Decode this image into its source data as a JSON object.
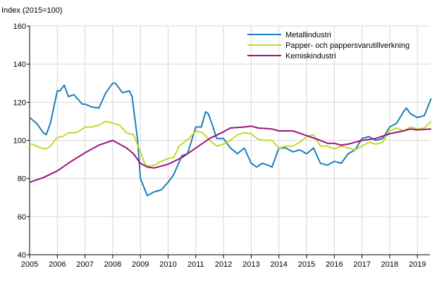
{
  "chart_data": {
    "type": "line",
    "ylabel": "Index (2015=100)",
    "xlabel": "",
    "ylim": [
      40,
      160
    ],
    "xlim": [
      2005,
      2019.6
    ],
    "yticks": [
      40,
      60,
      80,
      100,
      120,
      140,
      160
    ],
    "xticks": [
      "2005",
      "2006",
      "2007",
      "2008",
      "2009",
      "2010",
      "2011",
      "2012",
      "2013",
      "2014",
      "2015",
      "2016",
      "2017",
      "2018",
      "2019"
    ],
    "grid": true,
    "legend": "top-right",
    "series": [
      {
        "name": "Metallindustri",
        "color": "#1a7fba",
        "points": [
          [
            2005.0,
            112
          ],
          [
            2005.25,
            109
          ],
          [
            2005.5,
            104
          ],
          [
            2005.6,
            103
          ],
          [
            2005.75,
            109
          ],
          [
            2006.0,
            126
          ],
          [
            2006.1,
            126
          ],
          [
            2006.25,
            129
          ],
          [
            2006.4,
            123
          ],
          [
            2006.6,
            124
          ],
          [
            2006.9,
            119
          ],
          [
            2007.0,
            119
          ],
          [
            2007.25,
            117.5
          ],
          [
            2007.5,
            117
          ],
          [
            2007.75,
            125
          ],
          [
            2008.0,
            130
          ],
          [
            2008.1,
            130
          ],
          [
            2008.35,
            125
          ],
          [
            2008.6,
            126
          ],
          [
            2008.7,
            123
          ],
          [
            2008.9,
            100
          ],
          [
            2009.0,
            80
          ],
          [
            2009.25,
            71
          ],
          [
            2009.5,
            73
          ],
          [
            2009.75,
            74
          ],
          [
            2010.0,
            78
          ],
          [
            2010.2,
            82
          ],
          [
            2010.5,
            92
          ],
          [
            2010.7,
            93
          ],
          [
            2011.0,
            107
          ],
          [
            2011.2,
            107
          ],
          [
            2011.35,
            115
          ],
          [
            2011.45,
            114
          ],
          [
            2011.6,
            108
          ],
          [
            2011.75,
            101
          ],
          [
            2012.0,
            101
          ],
          [
            2012.25,
            96
          ],
          [
            2012.5,
            93
          ],
          [
            2012.75,
            96
          ],
          [
            2013.0,
            88
          ],
          [
            2013.2,
            86
          ],
          [
            2013.4,
            88
          ],
          [
            2013.6,
            87
          ],
          [
            2013.75,
            86
          ],
          [
            2014.0,
            96
          ],
          [
            2014.25,
            96
          ],
          [
            2014.5,
            94
          ],
          [
            2014.75,
            95
          ],
          [
            2015.0,
            93
          ],
          [
            2015.25,
            96
          ],
          [
            2015.5,
            88
          ],
          [
            2015.75,
            87
          ],
          [
            2016.0,
            89
          ],
          [
            2016.25,
            88
          ],
          [
            2016.5,
            93
          ],
          [
            2016.75,
            95
          ],
          [
            2017.0,
            101
          ],
          [
            2017.25,
            102
          ],
          [
            2017.5,
            100
          ],
          [
            2017.75,
            101
          ],
          [
            2018.0,
            107
          ],
          [
            2018.25,
            109
          ],
          [
            2018.5,
            115
          ],
          [
            2018.6,
            117
          ],
          [
            2018.75,
            114
          ],
          [
            2019.0,
            112
          ],
          [
            2019.25,
            113
          ],
          [
            2019.5,
            122
          ]
        ]
      },
      {
        "name": "Papper- och pappersvarutillverkning",
        "color": "#c3d92b",
        "points": [
          [
            2005.0,
            98
          ],
          [
            2005.1,
            98
          ],
          [
            2005.4,
            96
          ],
          [
            2005.6,
            95.5
          ],
          [
            2005.75,
            97
          ],
          [
            2006.0,
            101.5
          ],
          [
            2006.2,
            102
          ],
          [
            2006.4,
            104
          ],
          [
            2006.6,
            104
          ],
          [
            2006.75,
            104.5
          ],
          [
            2007.0,
            107
          ],
          [
            2007.25,
            107
          ],
          [
            2007.5,
            108
          ],
          [
            2007.75,
            110
          ],
          [
            2008.0,
            109
          ],
          [
            2008.25,
            108
          ],
          [
            2008.5,
            104
          ],
          [
            2008.75,
            103
          ],
          [
            2009.0,
            94
          ],
          [
            2009.15,
            88
          ],
          [
            2009.25,
            86.5
          ],
          [
            2009.5,
            87
          ],
          [
            2009.75,
            89
          ],
          [
            2010.0,
            90.5
          ],
          [
            2010.2,
            91
          ],
          [
            2010.4,
            97
          ],
          [
            2010.75,
            101
          ],
          [
            2011.0,
            105
          ],
          [
            2011.25,
            104
          ],
          [
            2011.5,
            100
          ],
          [
            2011.75,
            97
          ],
          [
            2012.0,
            98
          ],
          [
            2012.25,
            100
          ],
          [
            2012.5,
            103
          ],
          [
            2012.75,
            104
          ],
          [
            2013.0,
            103.5
          ],
          [
            2013.25,
            100.5
          ],
          [
            2013.5,
            100
          ],
          [
            2013.75,
            100
          ],
          [
            2014.0,
            96
          ],
          [
            2014.25,
            97
          ],
          [
            2014.5,
            97
          ],
          [
            2014.75,
            99
          ],
          [
            2015.0,
            102
          ],
          [
            2015.25,
            103
          ],
          [
            2015.5,
            97
          ],
          [
            2015.75,
            97
          ],
          [
            2016.0,
            95.5
          ],
          [
            2016.25,
            97
          ],
          [
            2016.5,
            96
          ],
          [
            2016.75,
            95
          ],
          [
            2017.0,
            97
          ],
          [
            2017.25,
            99
          ],
          [
            2017.5,
            98
          ],
          [
            2017.75,
            99
          ],
          [
            2018.0,
            105
          ],
          [
            2018.25,
            106.5
          ],
          [
            2018.5,
            105
          ],
          [
            2018.75,
            107
          ],
          [
            2019.0,
            106
          ],
          [
            2019.25,
            106.5
          ],
          [
            2019.5,
            110
          ]
        ]
      },
      {
        "name": "Kemiskindustri",
        "color": "#a0117f",
        "points": [
          [
            2005.0,
            78
          ],
          [
            2005.5,
            80.5
          ],
          [
            2006.0,
            84
          ],
          [
            2006.5,
            89
          ],
          [
            2007.0,
            93.5
          ],
          [
            2007.5,
            97.5
          ],
          [
            2008.0,
            100
          ],
          [
            2008.25,
            98
          ],
          [
            2008.5,
            96
          ],
          [
            2008.75,
            93
          ],
          [
            2009.0,
            88
          ],
          [
            2009.25,
            86
          ],
          [
            2009.5,
            85.5
          ],
          [
            2010.0,
            87.5
          ],
          [
            2010.5,
            91
          ],
          [
            2011.0,
            96
          ],
          [
            2011.5,
            101
          ],
          [
            2012.0,
            104.5
          ],
          [
            2012.25,
            106.5
          ],
          [
            2012.75,
            107
          ],
          [
            2013.0,
            107.5
          ],
          [
            2013.25,
            106.5
          ],
          [
            2013.75,
            106
          ],
          [
            2014.0,
            105
          ],
          [
            2014.5,
            105
          ],
          [
            2015.0,
            102.5
          ],
          [
            2015.5,
            100
          ],
          [
            2015.75,
            98.5
          ],
          [
            2016.0,
            98.5
          ],
          [
            2016.25,
            97.5
          ],
          [
            2016.5,
            98
          ],
          [
            2017.0,
            100
          ],
          [
            2017.5,
            101
          ],
          [
            2018.0,
            103.5
          ],
          [
            2018.5,
            105
          ],
          [
            2018.75,
            106
          ],
          [
            2019.0,
            105.5
          ],
          [
            2019.5,
            106
          ]
        ]
      }
    ]
  }
}
